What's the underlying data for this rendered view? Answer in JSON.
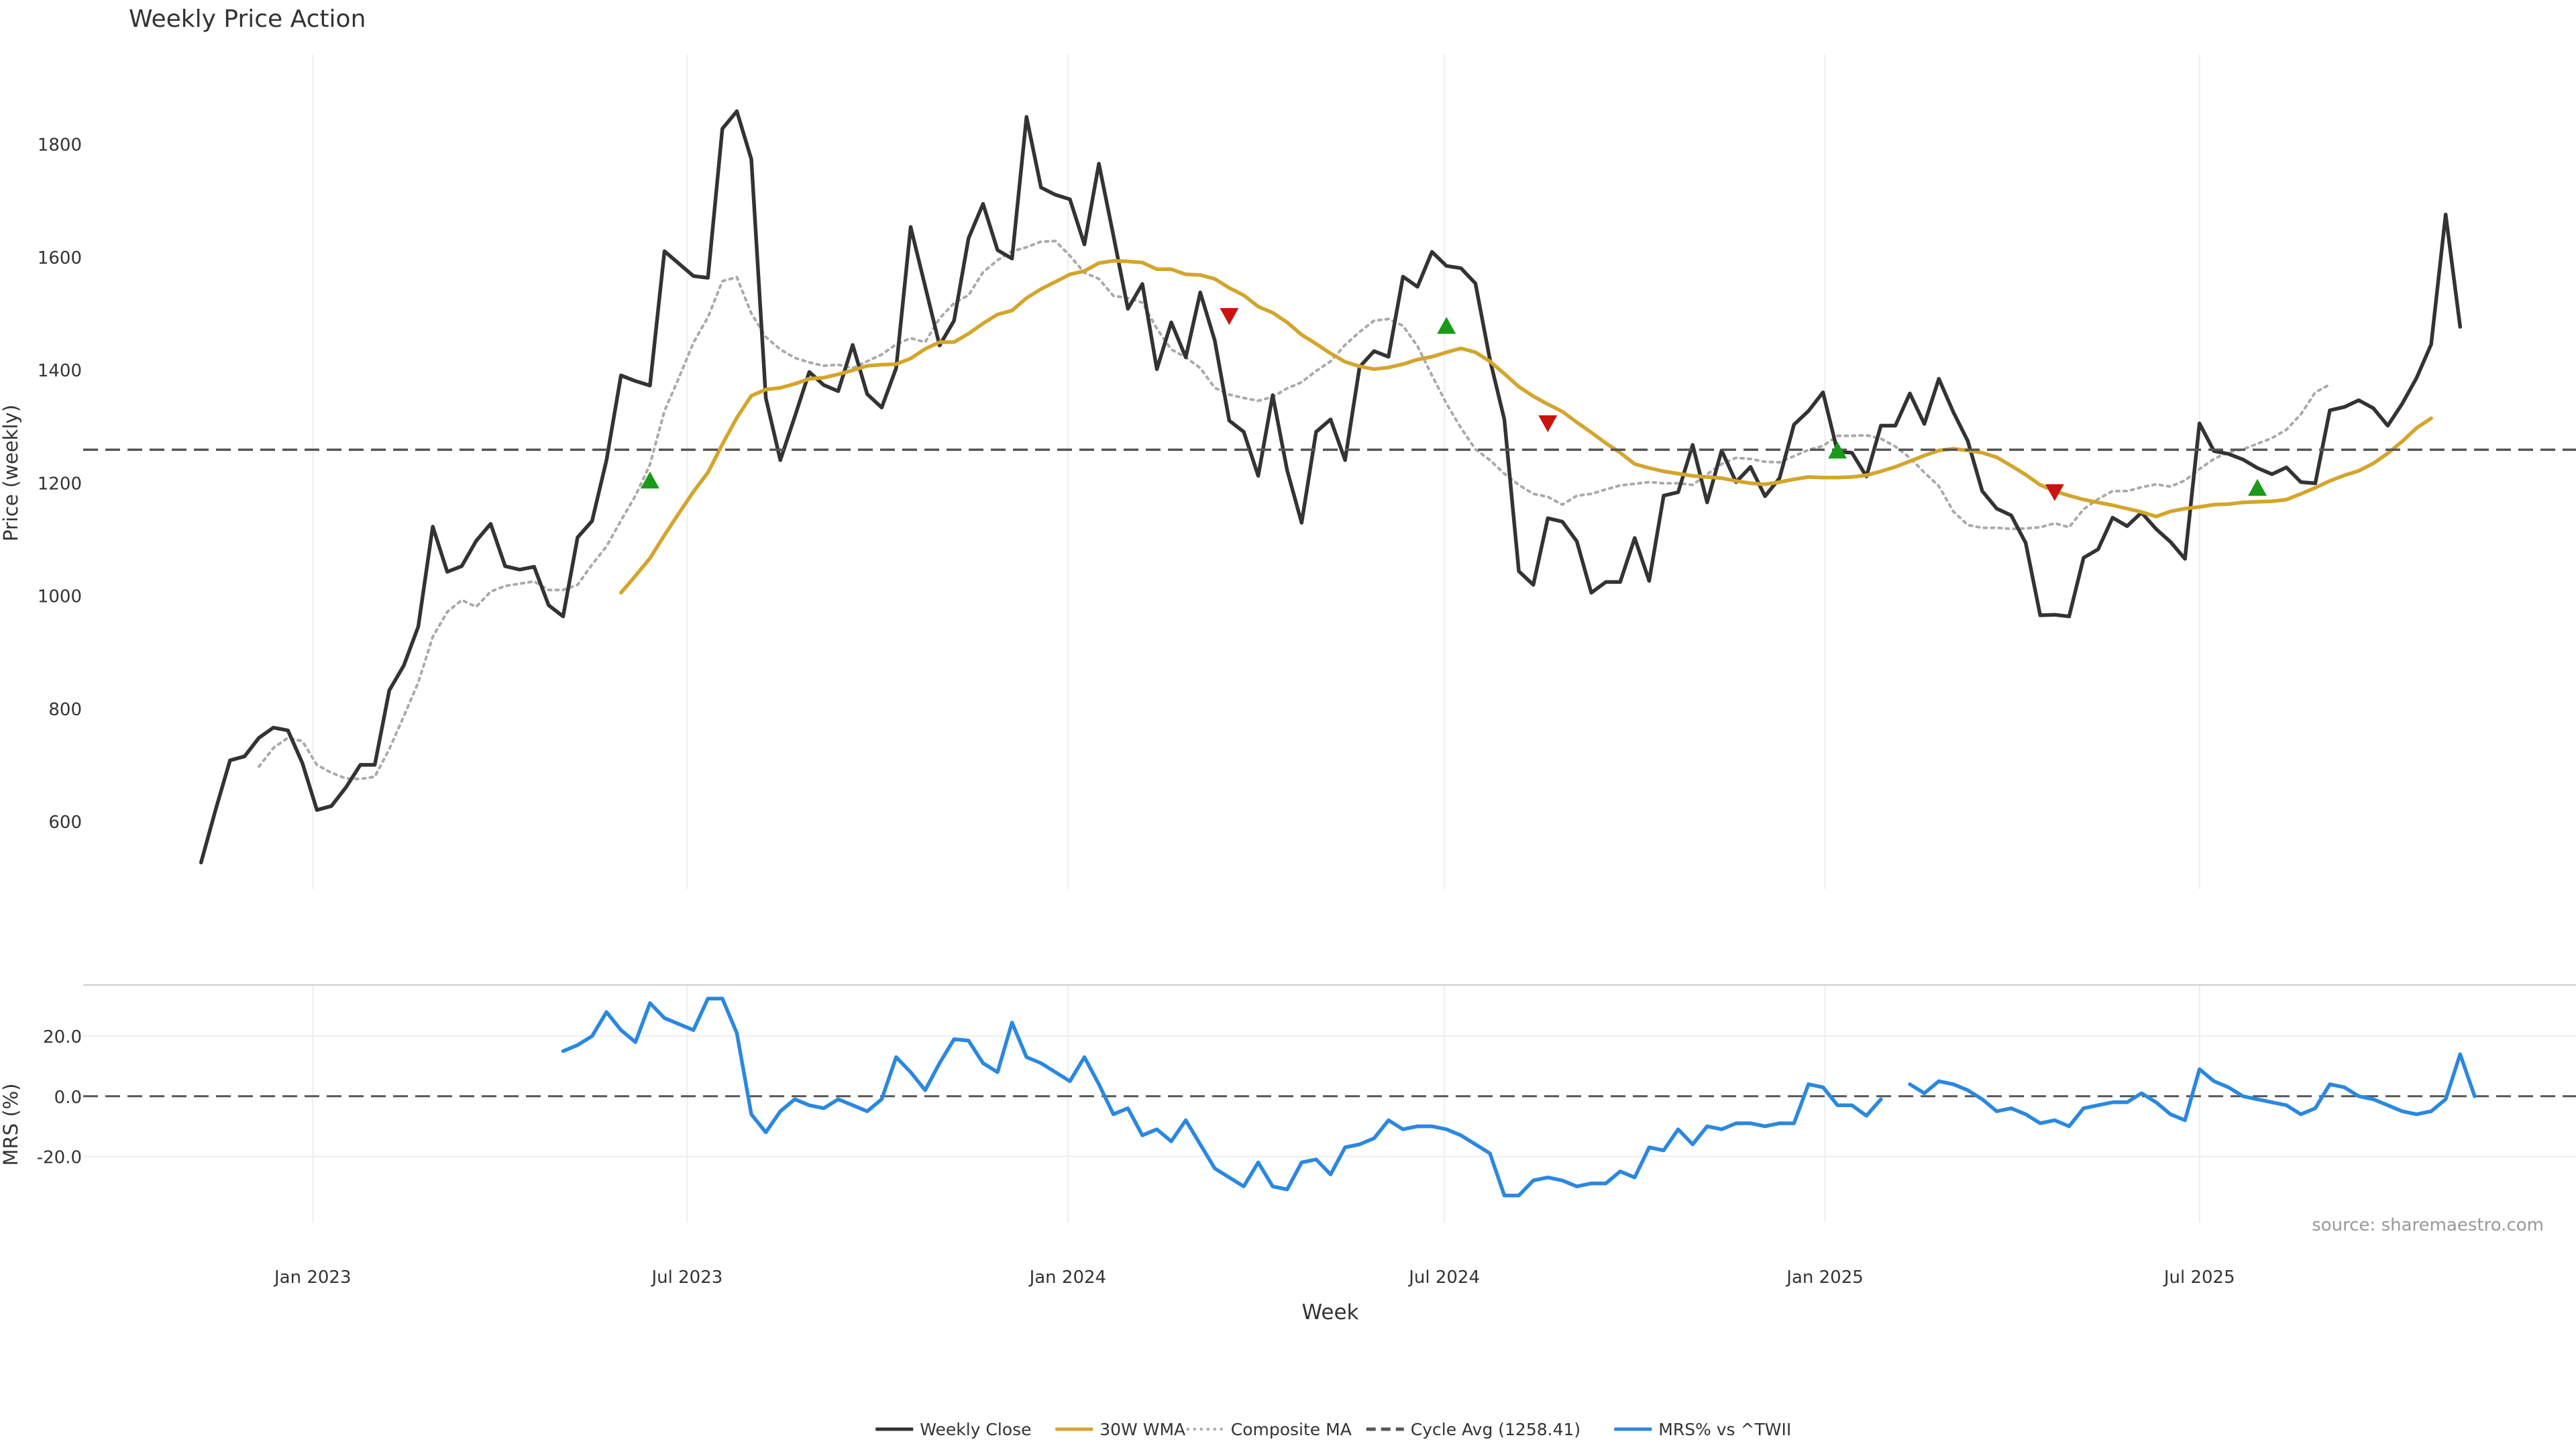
{
  "chart_data": [
    {
      "type": "line",
      "title": "Weekly Price Action",
      "ylabel": "Price (weekly)",
      "ylim": [
        480,
        1960
      ],
      "yticks": [
        600,
        800,
        1000,
        1200,
        1400,
        1600,
        1800
      ],
      "grid": "vertical",
      "x_start": "2022-11-08",
      "x_step_days": 7,
      "series": [
        {
          "name": "Weekly Close",
          "color": "#333333",
          "style": "solid",
          "values": [
            527,
            620,
            708,
            715,
            748,
            766,
            761,
            703,
            620,
            627,
            660,
            700,
            700,
            832,
            876,
            945,
            1122,
            1042,
            1052,
            1097,
            1127,
            1052,
            1046,
            1051,
            983,
            963,
            1103,
            1132,
            1240,
            1390,
            1380,
            1372,
            1610,
            1588,
            1566,
            1563,
            1827,
            1858,
            1773,
            1350,
            1240,
            1317,
            1396,
            1373,
            1362,
            1444,
            1357,
            1333,
            1403,
            1653,
            1548,
            1443,
            1487,
            1633,
            1694,
            1612,
            1597,
            1848,
            1723,
            1710,
            1702,
            1622,
            1765,
            1638,
            1508,
            1552,
            1401,
            1484,
            1422,
            1537,
            1452,
            1310,
            1290,
            1212,
            1355,
            1222,
            1129,
            1290,
            1312,
            1240,
            1405,
            1433,
            1423,
            1565,
            1547,
            1609,
            1584,
            1580,
            1553,
            1418,
            1312,
            1043,
            1019,
            1137,
            1131,
            1096,
            1005,
            1024,
            1024,
            1102,
            1026,
            1177,
            1183,
            1267,
            1165,
            1257,
            1201,
            1228,
            1176,
            1208,
            1303,
            1327,
            1360,
            1255,
            1253,
            1211,
            1301,
            1301,
            1358,
            1304,
            1384,
            1325,
            1274,
            1185,
            1154,
            1142,
            1093,
            965,
            966,
            963,
            1067,
            1082,
            1138,
            1123,
            1147,
            1118,
            1095,
            1065,
            1305,
            1256,
            1251,
            1241,
            1226,
            1215,
            1227,
            1201,
            1199,
            1328,
            1334,
            1346,
            1332,
            1301,
            1340,
            1386,
            1445,
            1675,
            1476
          ]
        },
        {
          "name": "30W WMA",
          "color": "#d4a52c",
          "style": "solid",
          "start_index": 29,
          "values": [
            1005,
            1035,
            1066,
            1107,
            1146,
            1184,
            1218,
            1268,
            1315,
            1354,
            1365,
            1368,
            1375,
            1384,
            1386,
            1392,
            1399,
            1407,
            1409,
            1410,
            1420,
            1437,
            1449,
            1449,
            1464,
            1482,
            1498,
            1505,
            1527,
            1543,
            1556,
            1569,
            1575,
            1589,
            1593,
            1592,
            1590,
            1578,
            1578,
            1569,
            1568,
            1561,
            1545,
            1532,
            1512,
            1501,
            1484,
            1462,
            1446,
            1429,
            1414,
            1406,
            1401,
            1404,
            1410,
            1418,
            1423,
            1431,
            1438,
            1431,
            1415,
            1393,
            1370,
            1353,
            1339,
            1326,
            1307,
            1289,
            1270,
            1253,
            1233,
            1226,
            1220,
            1216,
            1212,
            1210,
            1208,
            1203,
            1199,
            1197,
            1201,
            1206,
            1210,
            1209,
            1209,
            1210,
            1213,
            1220,
            1228,
            1238,
            1248,
            1257,
            1260,
            1257,
            1253,
            1245,
            1230,
            1214,
            1196,
            1185,
            1177,
            1170,
            1165,
            1160,
            1154,
            1148,
            1140,
            1149,
            1154,
            1157,
            1161,
            1162,
            1165,
            1166,
            1167,
            1170,
            1180,
            1191,
            1203,
            1213,
            1221,
            1234,
            1252,
            1273,
            1297,
            1314
          ]
        },
        {
          "name": "Composite MA",
          "color": "#aaaaaa",
          "style": "dotted",
          "start_index": 4,
          "values": [
            697,
            730,
            748,
            742,
            700,
            686,
            676,
            675,
            679,
            728,
            786,
            846,
            927,
            971,
            992,
            980,
            1007,
            1017,
            1021,
            1025,
            1010,
            1010,
            1019,
            1055,
            1087,
            1133,
            1177,
            1232,
            1327,
            1386,
            1448,
            1493,
            1557,
            1564,
            1500,
            1458,
            1436,
            1421,
            1413,
            1407,
            1409,
            1403,
            1415,
            1427,
            1445,
            1456,
            1449,
            1491,
            1518,
            1532,
            1573,
            1594,
            1610,
            1617,
            1627,
            1628,
            1602,
            1572,
            1561,
            1531,
            1527,
            1519,
            1473,
            1436,
            1422,
            1403,
            1368,
            1356,
            1350,
            1345,
            1352,
            1367,
            1378,
            1398,
            1415,
            1444,
            1467,
            1487,
            1490,
            1478,
            1442,
            1390,
            1340,
            1297,
            1259,
            1240,
            1216,
            1196,
            1180,
            1175,
            1161,
            1177,
            1180,
            1188,
            1195,
            1198,
            1201,
            1199,
            1199,
            1196,
            1215,
            1233,
            1244,
            1242,
            1237,
            1236,
            1247,
            1258,
            1265,
            1283,
            1283,
            1284,
            1278,
            1264,
            1244,
            1218,
            1194,
            1149,
            1125,
            1120,
            1120,
            1118,
            1119,
            1121,
            1128,
            1121,
            1153,
            1171,
            1185,
            1185,
            1192,
            1197,
            1193,
            1204,
            1224,
            1242,
            1254,
            1259,
            1269,
            1279,
            1294,
            1321,
            1360,
            1374
          ]
        }
      ],
      "reference_line": {
        "name": "Cycle Avg (1258.41)",
        "value": 1258.41,
        "color": "#555555",
        "style": "dashed"
      },
      "markers": [
        {
          "index": 31,
          "value": 1203,
          "type": "up",
          "color": "#1a9a1a"
        },
        {
          "index": 71,
          "value": 1496,
          "type": "down",
          "color": "#cc1111"
        },
        {
          "index": 86,
          "value": 1477,
          "type": "up",
          "color": "#1a9a1a"
        },
        {
          "index": 93,
          "value": 1306,
          "type": "down",
          "color": "#cc1111"
        },
        {
          "index": 113,
          "value": 1256,
          "type": "up",
          "color": "#1a9a1a"
        },
        {
          "index": 128,
          "value": 1184,
          "type": "down",
          "color": "#cc1111"
        },
        {
          "index": 142,
          "value": 1190,
          "type": "up",
          "color": "#1a9a1a"
        }
      ]
    },
    {
      "type": "line",
      "title": "",
      "ylabel": "MRS (%)",
      "xlabel": "Week",
      "ylim": [
        -42,
        37
      ],
      "yticks": [
        -20,
        0,
        20
      ],
      "ytick_labels": [
        "-20.0",
        "0.0",
        "20.0"
      ],
      "x_ticks": [
        "Jan 2023",
        "Jul 2023",
        "Jan 2024",
        "Jul 2024",
        "Jan 2025",
        "Jul 2025"
      ],
      "x_tick_dates": [
        "2023-01-01",
        "2023-07-01",
        "2024-01-01",
        "2024-07-01",
        "2025-01-01",
        "2025-07-01"
      ],
      "series": [
        {
          "name": "MRS% vs ^TWII",
          "color": "#2a88e0",
          "style": "solid",
          "start_index": 25,
          "values": [
            15,
            17,
            20,
            28,
            22,
            18,
            31,
            26,
            24,
            22,
            32.5,
            32.5,
            21,
            -6,
            -12,
            -5,
            -1,
            -3,
            -4,
            -1,
            -3,
            -5,
            -1,
            13,
            8,
            2,
            11,
            19,
            18.5,
            11,
            8,
            24.5,
            13,
            11,
            8,
            5,
            13,
            4,
            -6,
            -4,
            -13,
            -11,
            -15,
            -8,
            -16,
            -24,
            -27,
            -30,
            -22,
            -30,
            -31,
            -22,
            -21,
            -26,
            -17,
            -16,
            -14,
            -8,
            -11,
            -10,
            -10,
            -11,
            -13,
            -16,
            -19,
            -33,
            -33,
            -28,
            -27,
            -28,
            -30,
            -29,
            -29,
            -25,
            -27,
            -17,
            -18,
            -11,
            -16,
            -10,
            -11,
            -9,
            -9,
            -10,
            -9,
            -9,
            4,
            3,
            -3,
            -3,
            -6.5,
            -1,
            null,
            4,
            1,
            5,
            4,
            2,
            -1,
            -5,
            -4,
            -6,
            -9,
            -8,
            -10,
            -4,
            -3,
            -2,
            -2,
            1,
            -2,
            -6,
            -8,
            9,
            5,
            3,
            0,
            -1,
            -2,
            -3,
            -6,
            -4,
            4,
            3,
            0,
            -1,
            -3,
            -5,
            -6,
            -5,
            -1,
            14,
            0
          ]
        }
      ],
      "reference_line": {
        "value": 0,
        "color": "#555555",
        "style": "dashed"
      }
    }
  ],
  "source_note": "source: sharemaestro.com",
  "legend": {
    "placement": "bottom-center",
    "items": [
      {
        "label": "Weekly Close",
        "color": "#333333",
        "style": "solid"
      },
      {
        "label": "30W WMA",
        "color": "#d4a52c",
        "style": "solid"
      },
      {
        "label": "Composite MA",
        "color": "#aaaaaa",
        "style": "dotted"
      },
      {
        "label": "Cycle Avg (1258.41)",
        "color": "#555555",
        "style": "dashed"
      },
      {
        "label": "MRS% vs ^TWII",
        "color": "#2a88e0",
        "style": "solid"
      }
    ]
  }
}
